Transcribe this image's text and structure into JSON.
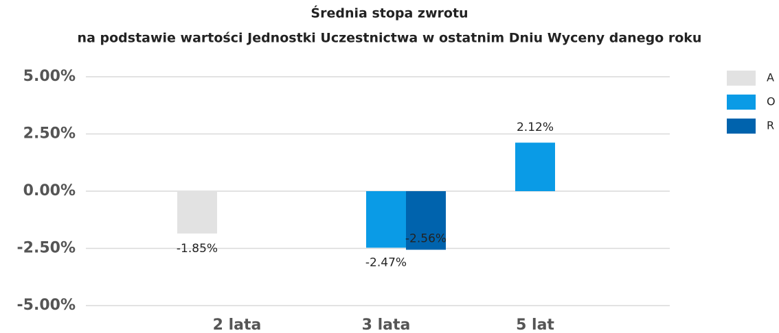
{
  "chart_data": {
    "type": "bar",
    "title": "Średnia stopa zwrotu",
    "subtitle": "na podstawie wartości Jednostki Uczestnictwa w ostatnim Dniu Wyceny danego roku",
    "categories": [
      "2 lata",
      "3 lata",
      "5 lat"
    ],
    "series": [
      {
        "name": "A",
        "color": "#e2e2e2",
        "values": [
          -1.85,
          null,
          null
        ],
        "value_labels": [
          "-1.85%",
          null,
          null
        ]
      },
      {
        "name": "O",
        "color": "#0a9be6",
        "values": [
          null,
          -2.47,
          2.12
        ],
        "value_labels": [
          null,
          "-2.47%",
          "2.12%"
        ]
      },
      {
        "name": "R",
        "color": "#0063ad",
        "values": [
          null,
          -2.56,
          null
        ],
        "value_labels": [
          null,
          "-2.56%",
          null
        ]
      }
    ],
    "ylim": [
      -5,
      5
    ],
    "yticks": [
      {
        "value": -5,
        "label": "-5.00%"
      },
      {
        "value": -2.5,
        "label": "-2.50%"
      },
      {
        "value": 0,
        "label": "0.00%"
      },
      {
        "value": 2.5,
        "label": "2.50%"
      },
      {
        "value": 5,
        "label": "5.00%"
      }
    ],
    "grid": true,
    "legend": "top-right"
  }
}
